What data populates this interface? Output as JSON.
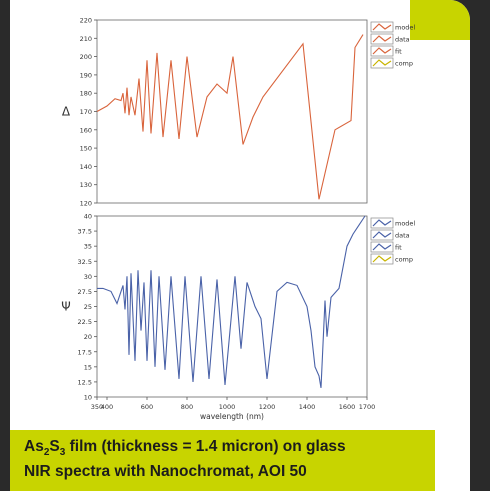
{
  "caption": {
    "line1_prefix": "As",
    "line1_sub1": "2",
    "line1_mid": "S",
    "line1_sub2": "3",
    "line1_rest": " film (thickness = 1.4 micron) on glass",
    "line2": "NIR spectra with Nanochromat, AOI 50"
  },
  "chart_data": [
    {
      "type": "line",
      "ylabel": "Δ",
      "xlabel": "",
      "xlim": [
        350,
        1700
      ],
      "ylim": [
        120,
        220
      ],
      "yticks": [
        "120",
        "130",
        "140",
        "150",
        "160",
        "170",
        "180",
        "190",
        "200",
        "210",
        "220"
      ],
      "legend": {
        "position": "top-right",
        "entries": [
          "model",
          "data",
          "fit",
          "comp"
        ]
      },
      "series": [
        {
          "color": "#d9643c",
          "x": [
            350,
            400,
            440,
            470,
            480,
            490,
            500,
            510,
            520,
            540,
            560,
            580,
            600,
            620,
            650,
            680,
            720,
            760,
            800,
            850,
            900,
            950,
            1000,
            1030,
            1080,
            1130,
            1180,
            1380,
            1460,
            1540,
            1620,
            1640,
            1680
          ],
          "y": [
            170,
            173,
            177,
            176,
            180,
            169,
            183,
            168,
            178,
            168,
            188,
            159,
            198,
            158,
            202,
            156,
            198,
            155,
            200,
            156,
            178,
            185,
            180,
            200,
            152,
            167,
            178,
            207,
            122,
            160,
            165,
            205,
            212
          ]
        }
      ]
    },
    {
      "type": "line",
      "ylabel": "Ψ",
      "xlabel": "wavelength (nm)",
      "xlim": [
        350,
        1700
      ],
      "ylim": [
        10,
        40
      ],
      "yticks": [
        "10",
        "12.5",
        "15",
        "17.5",
        "20",
        "22.5",
        "25",
        "27.5",
        "30",
        "32.5",
        "35",
        "37.5",
        "40"
      ],
      "xticks": [
        "350",
        "400",
        "600",
        "800",
        "1000",
        "1200",
        "1400",
        "1600",
        "1700"
      ],
      "legend": {
        "position": "top-right",
        "entries": [
          "model",
          "data",
          "fit",
          "comp"
        ]
      },
      "series": [
        {
          "color": "#4a62a8",
          "x": [
            350,
            380,
            420,
            450,
            480,
            490,
            500,
            510,
            520,
            540,
            555,
            570,
            585,
            600,
            620,
            640,
            660,
            690,
            720,
            760,
            790,
            830,
            870,
            910,
            950,
            990,
            1040,
            1070,
            1100,
            1140,
            1170,
            1200,
            1250,
            1300,
            1350,
            1400,
            1420,
            1440,
            1460,
            1470,
            1490,
            1500,
            1520,
            1560,
            1600,
            1630,
            1660,
            1690
          ],
          "y": [
            28,
            28,
            27.5,
            25.5,
            28.5,
            24.5,
            30,
            17,
            30.5,
            16,
            31,
            21,
            29,
            16,
            31,
            15,
            30,
            14.5,
            30,
            13,
            30,
            12.5,
            30,
            13,
            29.5,
            12,
            30,
            18,
            29,
            25,
            23,
            13,
            27.5,
            29,
            28.5,
            25,
            21,
            15,
            13.5,
            11.5,
            26,
            20,
            26.5,
            28,
            35,
            37,
            38.5,
            40
          ]
        }
      ]
    }
  ]
}
